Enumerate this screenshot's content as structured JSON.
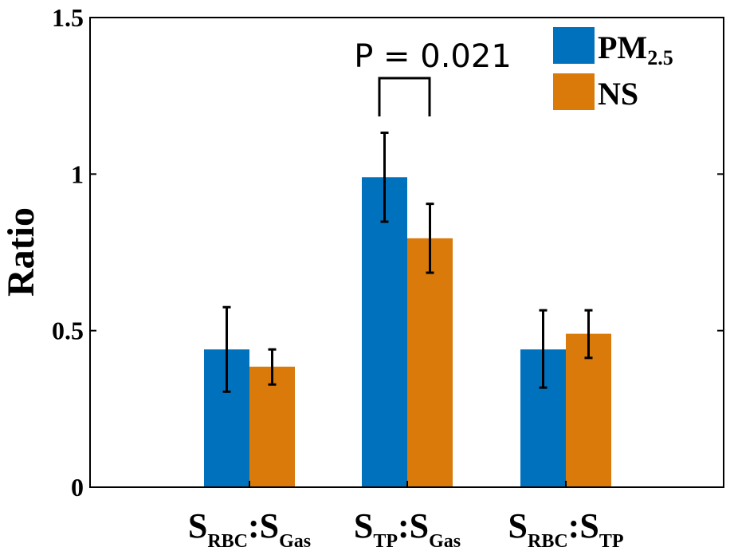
{
  "chart_data": {
    "type": "bar",
    "ylabel": "Ratio",
    "xlabel": "",
    "ylim": [
      0,
      1.5
    ],
    "yticks": [
      {
        "value": 0,
        "label": "0"
      },
      {
        "value": 0.5,
        "label": "0.5"
      },
      {
        "value": 1,
        "label": "1"
      },
      {
        "value": 1.5,
        "label": "1.5"
      }
    ],
    "categories": [
      {
        "main1": "S",
        "sub1": "RBC",
        "sep": ":",
        "main2": "S",
        "sub2": "Gas"
      },
      {
        "main1": "S",
        "sub1": "TP",
        "sep": ":",
        "main2": "S",
        "sub2": "Gas"
      },
      {
        "main1": "S",
        "sub1": "RBC",
        "sep": ":",
        "main2": "S",
        "sub2": "TP"
      }
    ],
    "series": [
      {
        "name": "PM2.5",
        "legend_main": "PM",
        "legend_sub": "2.5",
        "color": "#0072BD",
        "values": [
          0.44,
          0.99,
          0.44
        ],
        "error_low": [
          0.305,
          0.848,
          0.318
        ],
        "error_high": [
          0.575,
          1.132,
          0.565
        ]
      },
      {
        "name": "NS",
        "legend_main": "NS",
        "legend_sub": "",
        "color": "#D97A0B",
        "values": [
          0.385,
          0.795,
          0.49
        ],
        "error_low": [
          0.328,
          0.685,
          0.413
        ],
        "error_high": [
          0.44,
          0.905,
          0.565
        ]
      }
    ],
    "annotation": {
      "text": "P = 0.021",
      "category_index": 1
    },
    "legend_position": "top-right",
    "grid": false
  }
}
